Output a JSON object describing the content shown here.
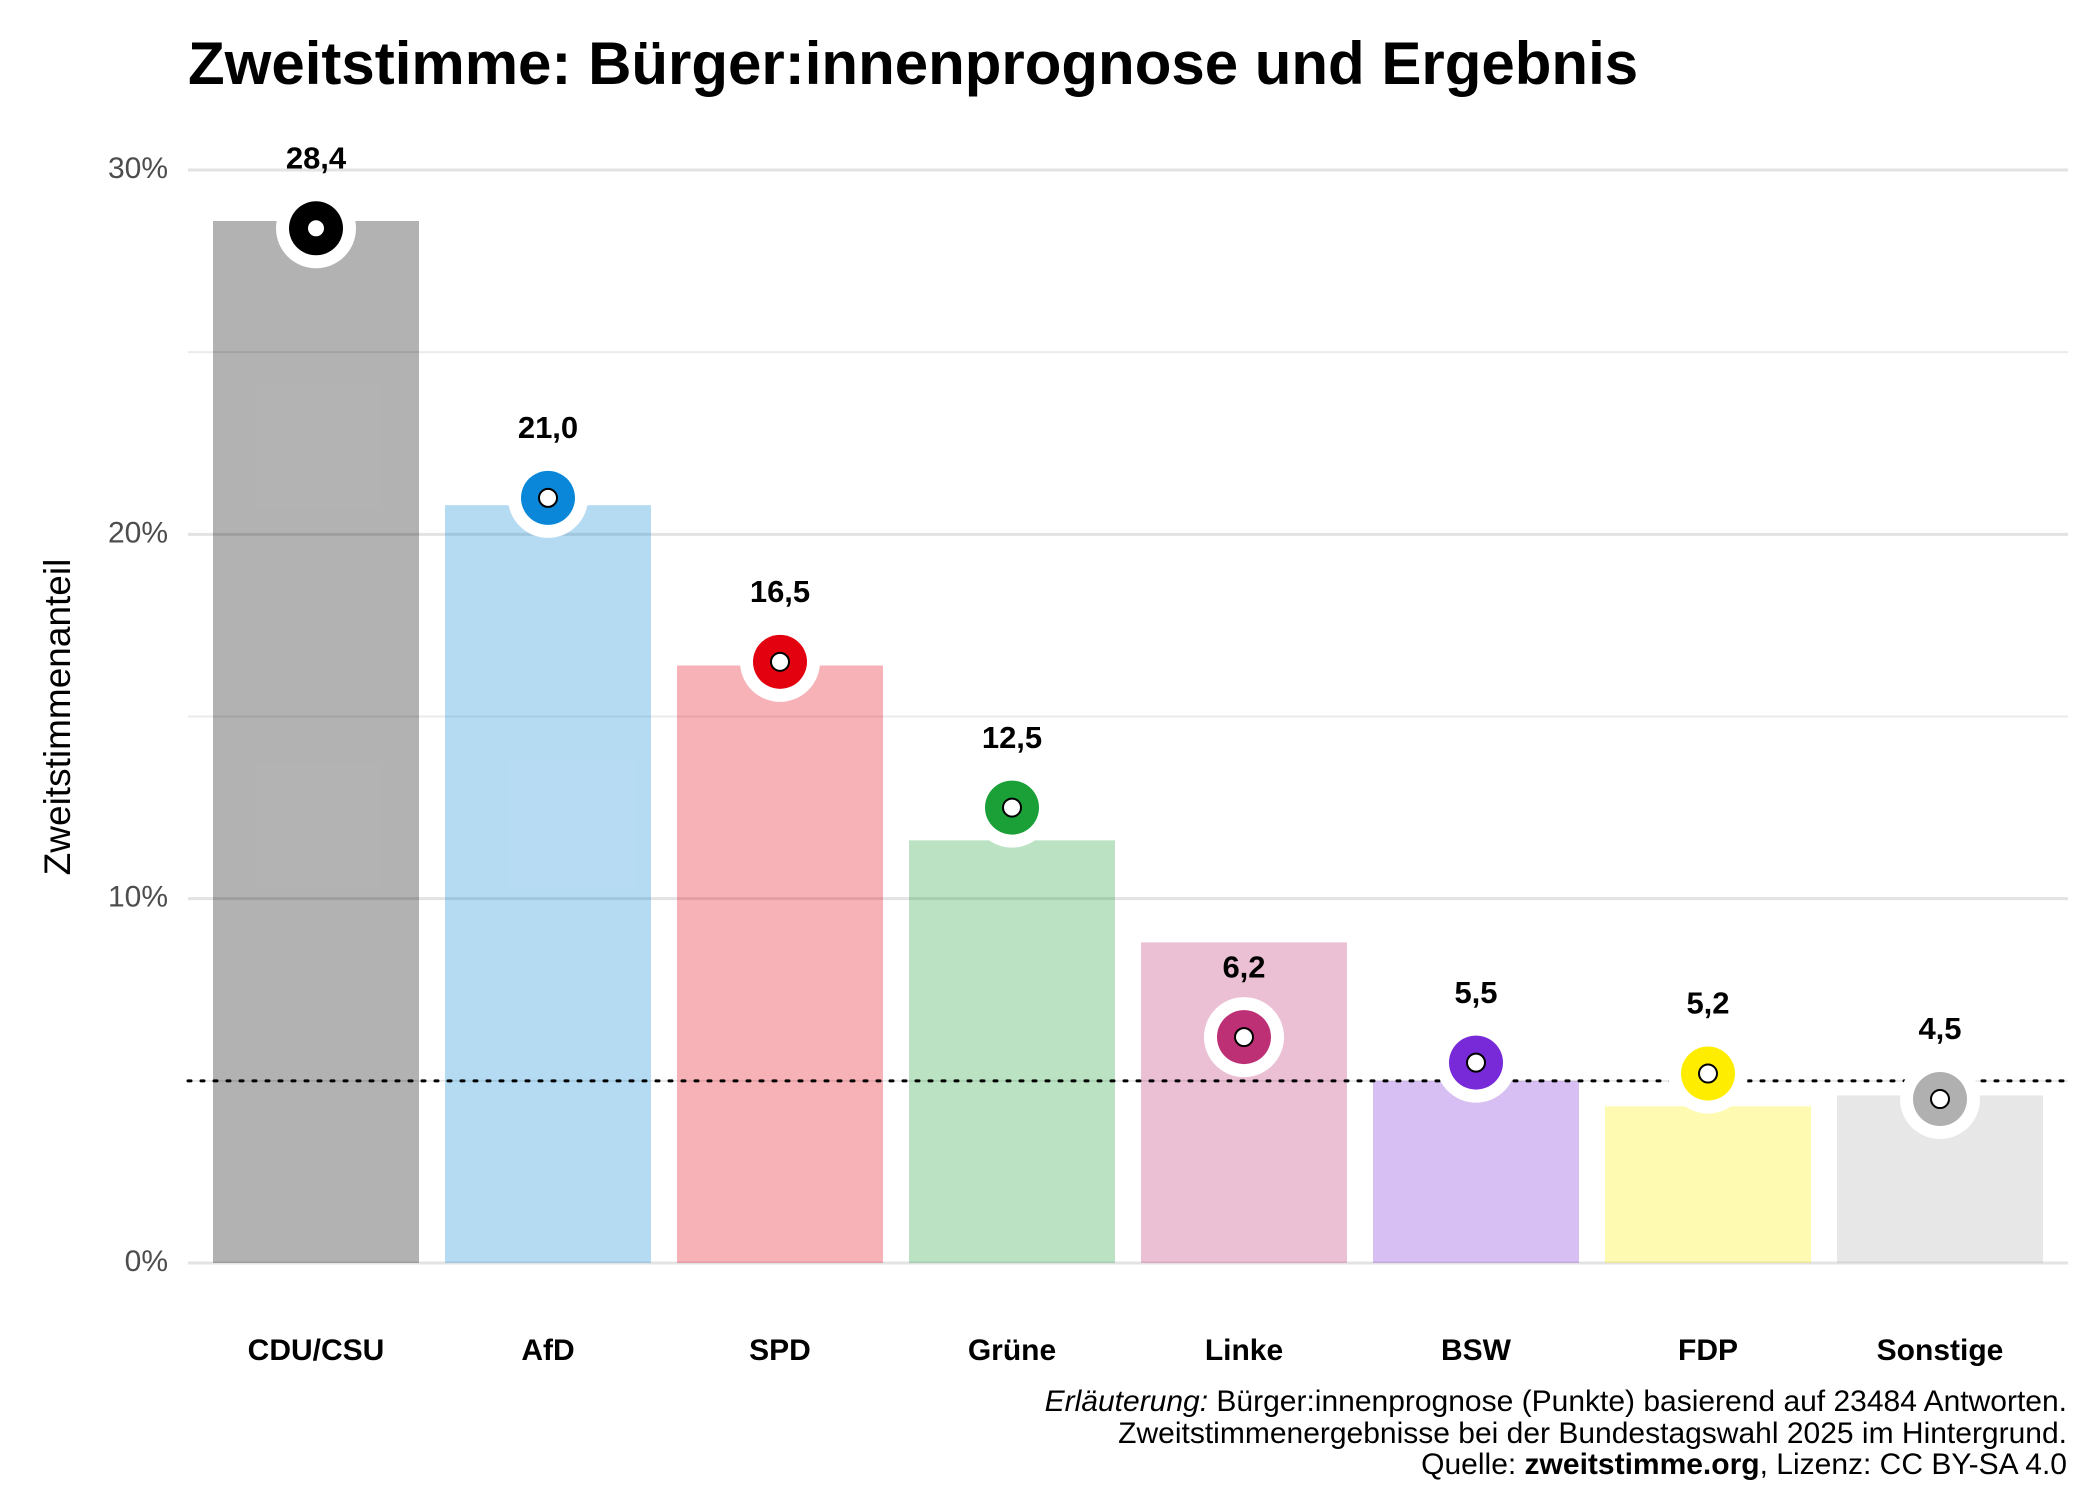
{
  "chart_data": {
    "type": "bar",
    "title": "Zweitstimme: Bürger:innenprognose und Ergebnis",
    "y_label": "Zweitstimmenanteil",
    "categories": [
      "CDU/CSU",
      "AfD",
      "SPD",
      "Grüne",
      "Linke",
      "BSW",
      "FDP",
      "Sonstige"
    ],
    "colors": [
      "#000000",
      "#0a87d8",
      "#e3000f",
      "#1aa037",
      "#be3075",
      "#792ad8",
      "#ffed00",
      "#b0b0b0"
    ],
    "results": [
      28.6,
      20.8,
      16.4,
      11.6,
      8.8,
      5.0,
      4.3,
      4.6
    ],
    "forecast": [
      28.4,
      21.0,
      16.5,
      12.5,
      6.2,
      5.5,
      5.2,
      4.5
    ],
    "forecast_labels": [
      "28,4",
      "21,0",
      "16,5",
      "12,5",
      "6,2",
      "5,5",
      "5,2",
      "4,5"
    ],
    "ylim": [
      0,
      30
    ],
    "yticks": [
      {
        "value": 0,
        "label": "0%"
      },
      {
        "value": 10,
        "label": "10%"
      },
      {
        "value": 20,
        "label": "20%"
      },
      {
        "value": 30,
        "label": "30%"
      }
    ],
    "minor_yticks": [
      5,
      15,
      25
    ],
    "threshold": 5,
    "grid": true,
    "caption": {
      "italic": "Erläuterung:",
      "line1": " Bürger:innenprognose (Punkte) basierend auf 23484 Antworten.",
      "line2": "Zweitstimmenergebnisse bei der Bundestagswahl 2025 im Hintergrund.",
      "source_prefix": "Quelle: ",
      "source_bold": "zweitstimme.org",
      "source_suffix": ", Lizenz: CC BY-SA 4.0"
    }
  }
}
